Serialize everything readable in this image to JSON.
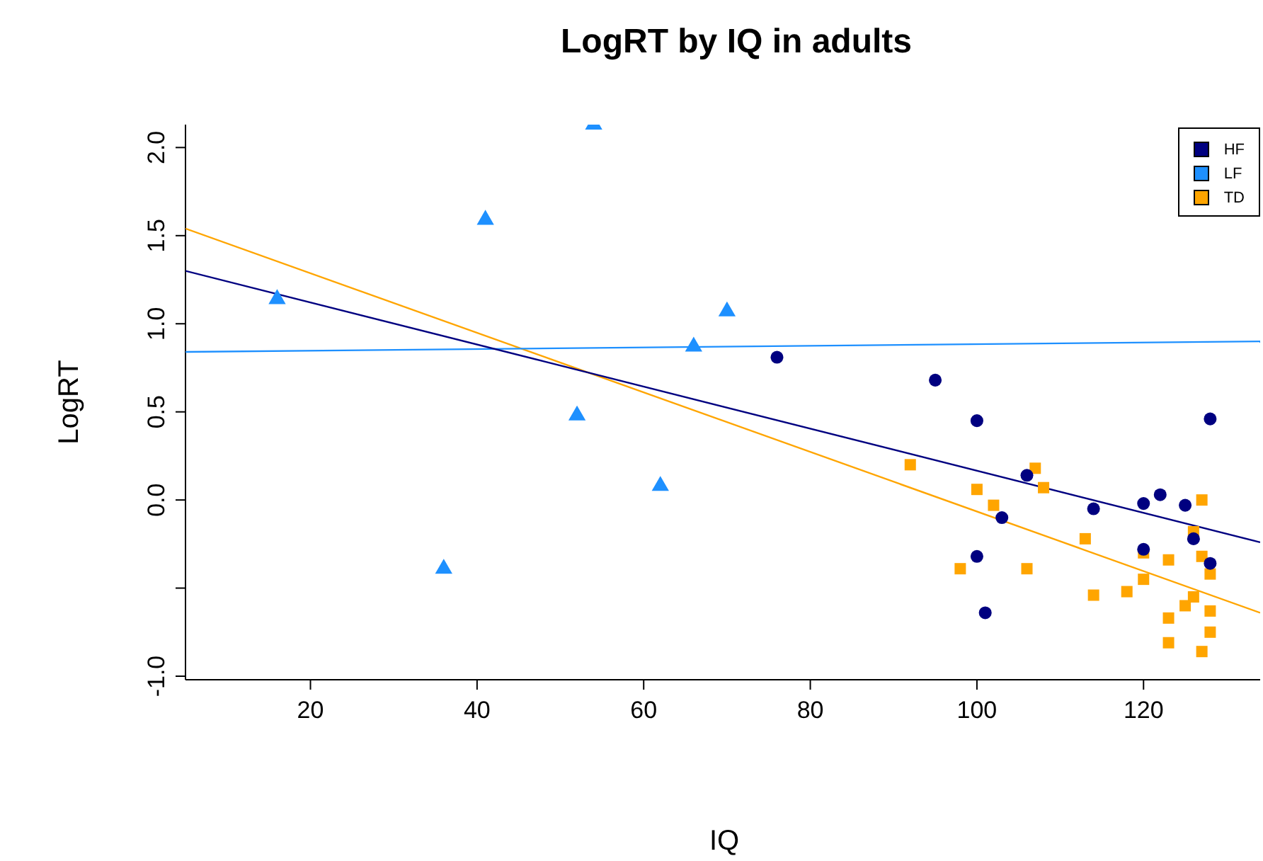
{
  "chart_data": {
    "type": "scatter",
    "title": "LogRT by IQ in adults",
    "xlabel": "IQ",
    "ylabel": "LogRT",
    "xlim": [
      5,
      134
    ],
    "xticks": [
      20,
      40,
      60,
      80,
      100,
      120
    ],
    "ylim": [
      -1.02,
      2.13
    ],
    "yticks": [
      {
        "value": -1,
        "label": "-1.0"
      },
      {
        "value": -0.5,
        "label": null
      },
      {
        "value": 0,
        "label": "0.0"
      },
      0.5,
      {
        "value": 1,
        "label": "1.0"
      },
      1.5,
      {
        "value": 2,
        "label": "2.0"
      }
    ],
    "grid": false,
    "legend": "top right",
    "series": [
      {
        "name": "HF",
        "color": "#000080",
        "marker": "circle",
        "x": [
          76,
          95,
          100,
          106,
          103,
          114,
          120,
          122,
          125,
          128,
          126,
          120,
          128,
          100,
          101
        ],
        "values": [
          0.81,
          0.68,
          0.45,
          0.14,
          -0.1,
          -0.05,
          -0.02,
          0.03,
          -0.03,
          0.46,
          -0.22,
          -0.28,
          -0.36,
          -0.32,
          -0.64
        ]
      },
      {
        "name": "LF",
        "color": "#1e90ff",
        "marker": "triangle",
        "x": [
          16,
          36,
          41,
          52,
          62,
          66,
          70,
          54
        ],
        "values": [
          1.14,
          -0.39,
          1.59,
          0.48,
          0.08,
          0.87,
          1.07,
          2.13
        ]
      },
      {
        "name": "TD",
        "color": "#ffa500",
        "marker": "square",
        "x": [
          92,
          107,
          108,
          100,
          102,
          113,
          127,
          126,
          120,
          123,
          98,
          106,
          127,
          128,
          120,
          118,
          114,
          126,
          125,
          128,
          128,
          123,
          123,
          127
        ],
        "values": [
          0.2,
          0.18,
          0.07,
          0.06,
          -0.03,
          -0.22,
          0.0,
          -0.18,
          -0.3,
          -0.34,
          -0.39,
          -0.39,
          -0.32,
          -0.42,
          -0.45,
          -0.52,
          -0.54,
          -0.55,
          -0.6,
          -0.63,
          -0.75,
          -0.67,
          -0.81,
          -0.86
        ]
      },
      {
        "type": "line",
        "color": "#000080",
        "x": [
          5,
          134
        ],
        "values": [
          1.3,
          -0.24
        ]
      },
      {
        "type": "line",
        "color": "#1e90ff",
        "x": [
          5,
          134
        ],
        "values": [
          0.84,
          0.9
        ]
      },
      {
        "type": "line",
        "color": "#ffa500",
        "x": [
          5,
          134
        ],
        "values": [
          1.54,
          -0.64
        ]
      }
    ]
  }
}
